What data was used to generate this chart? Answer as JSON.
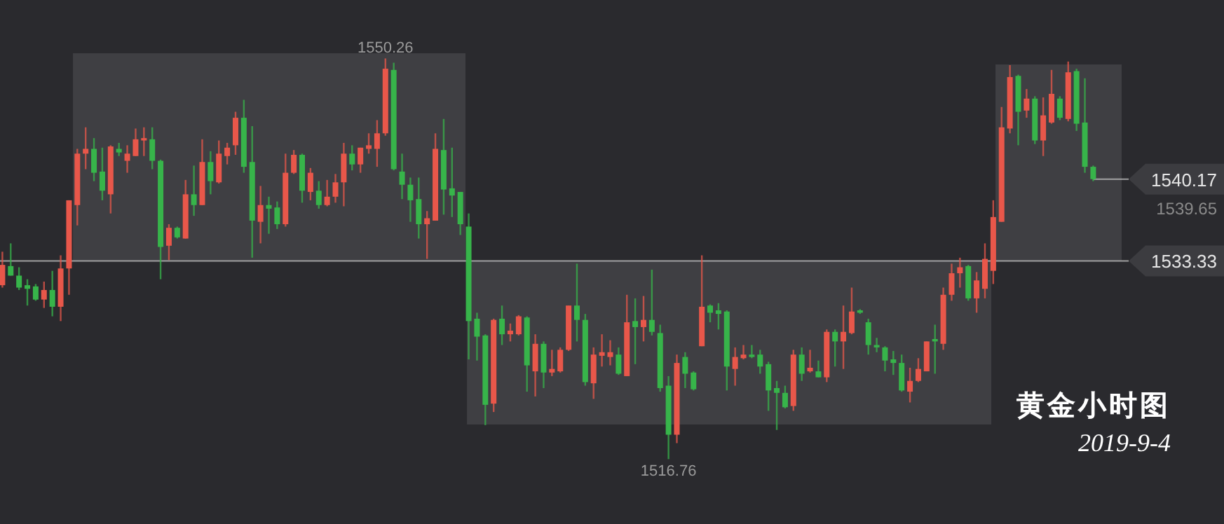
{
  "chart_data": {
    "type": "candlestick",
    "title": "黄金小时图",
    "subtitle": "2019-9-4",
    "categories": [
      null,
      null,
      null,
      null,
      null,
      null,
      null,
      null,
      null,
      null,
      null,
      null,
      null,
      null,
      null,
      null,
      null,
      null,
      null,
      null,
      null,
      null,
      null,
      null,
      null,
      null,
      null,
      null,
      null,
      null,
      null,
      null,
      null,
      null,
      null,
      null,
      null,
      null,
      null,
      null,
      null,
      null,
      null,
      null,
      null,
      null,
      null,
      null,
      null,
      null,
      null,
      null,
      null,
      null,
      null,
      null,
      null,
      null,
      null,
      null,
      null,
      null,
      null,
      null,
      null,
      null,
      null,
      null,
      null,
      null,
      null,
      null,
      null,
      null,
      null,
      null,
      null,
      null,
      null,
      null,
      null,
      null,
      null,
      null,
      null,
      null,
      null,
      null,
      null,
      null,
      null,
      null,
      null,
      null,
      null,
      null,
      null,
      null,
      null,
      null,
      null,
      null,
      null,
      null,
      null,
      null,
      null,
      null,
      null,
      null,
      null,
      null,
      null,
      null,
      null,
      null,
      null,
      null,
      null,
      null,
      null,
      null,
      null,
      null,
      null,
      null,
      null,
      null,
      null,
      null,
      null,
      null
    ],
    "ohlc": [
      [
        1531.3,
        1534.1,
        1531.1,
        1533.0
      ],
      [
        1532.9,
        1534.8,
        1532.1,
        1532.1
      ],
      [
        1532.1,
        1532.8,
        1530.9,
        1531.1
      ],
      [
        1531.3,
        1531.8,
        1529.6,
        1531.0
      ],
      [
        1531.2,
        1531.4,
        1530.0,
        1530.1
      ],
      [
        1530.1,
        1531.6,
        1529.4,
        1530.9
      ],
      [
        1530.9,
        1532.5,
        1528.7,
        1529.5
      ],
      [
        1529.5,
        1533.8,
        1528.3,
        1532.7
      ],
      [
        1532.7,
        1538.4,
        1530.5,
        1538.4
      ],
      [
        1538.0,
        1542.7,
        1536.3,
        1542.3
      ],
      [
        1542.3,
        1544.5,
        1541.0,
        1542.7
      ],
      [
        1542.7,
        1543.6,
        1540.0,
        1540.7
      ],
      [
        1540.8,
        1542.8,
        1538.4,
        1539.2
      ],
      [
        1538.9,
        1543.0,
        1537.3,
        1542.9
      ],
      [
        1542.7,
        1543.2,
        1542.1,
        1542.4
      ],
      [
        1541.7,
        1543.0,
        1540.7,
        1542.3
      ],
      [
        1542.1,
        1544.4,
        1542.1,
        1543.5
      ],
      [
        1543.4,
        1544.5,
        1542.1,
        1543.6
      ],
      [
        1543.5,
        1544.5,
        1541.0,
        1541.7
      ],
      [
        1541.7,
        1541.8,
        1531.8,
        1534.5
      ],
      [
        1534.6,
        1536.4,
        1533.4,
        1536.1
      ],
      [
        1536.1,
        1536.2,
        1535.2,
        1535.3
      ],
      [
        1535.2,
        1540.1,
        1535.2,
        1538.9
      ],
      [
        1538.9,
        1541.3,
        1537.1,
        1538.0
      ],
      [
        1538.0,
        1543.5,
        1538.0,
        1541.6
      ],
      [
        1541.6,
        1542.5,
        1538.9,
        1540.0
      ],
      [
        1539.9,
        1543.4,
        1539.8,
        1542.3
      ],
      [
        1542.1,
        1543.2,
        1541.4,
        1542.8
      ],
      [
        1543.0,
        1545.8,
        1542.2,
        1545.3
      ],
      [
        1545.3,
        1546.8,
        1540.7,
        1541.2
      ],
      [
        1541.6,
        1544.6,
        1533.6,
        1536.7
      ],
      [
        1536.6,
        1539.6,
        1534.8,
        1538.0
      ],
      [
        1538.0,
        1538.7,
        1535.6,
        1537.7
      ],
      [
        1537.8,
        1538.3,
        1536.0,
        1536.4
      ],
      [
        1536.4,
        1542.3,
        1536.2,
        1540.7
      ],
      [
        1540.7,
        1542.6,
        1540.6,
        1542.2
      ],
      [
        1542.2,
        1542.3,
        1538.2,
        1539.2
      ],
      [
        1539.1,
        1541.1,
        1538.4,
        1540.7
      ],
      [
        1539.2,
        1540.0,
        1537.7,
        1538.0
      ],
      [
        1538.0,
        1540.1,
        1537.9,
        1538.7
      ],
      [
        1538.7,
        1540.6,
        1538.2,
        1539.9
      ],
      [
        1539.9,
        1543.2,
        1537.9,
        1542.3
      ],
      [
        1542.3,
        1543.0,
        1540.9,
        1541.4
      ],
      [
        1541.4,
        1542.8,
        1540.7,
        1542.8
      ],
      [
        1542.7,
        1544.0,
        1542.3,
        1543.0
      ],
      [
        1542.7,
        1545.1,
        1541.2,
        1544.0
      ],
      [
        1544.0,
        1550.26,
        1543.8,
        1549.4
      ],
      [
        1549.3,
        1549.9,
        1540.9,
        1541.0
      ],
      [
        1540.8,
        1542.3,
        1538.5,
        1539.7
      ],
      [
        1539.7,
        1540.3,
        1536.6,
        1538.4
      ],
      [
        1538.5,
        1540.3,
        1535.2,
        1536.4
      ],
      [
        1536.4,
        1537.5,
        1533.5,
        1536.9
      ],
      [
        1536.7,
        1544.0,
        1536.7,
        1542.7
      ],
      [
        1542.6,
        1545.2,
        1537.2,
        1539.3
      ],
      [
        1539.4,
        1542.8,
        1537.0,
        1538.8
      ],
      [
        1539.1,
        1539.1,
        1535.5,
        1536.4
      ],
      [
        1536.2,
        1537.3,
        1525.1,
        1528.3
      ],
      [
        1528.5,
        1529.0,
        1525.0,
        1527.0
      ],
      [
        1527.1,
        1527.2,
        1519.6,
        1521.3
      ],
      [
        1521.4,
        1528.5,
        1520.7,
        1528.4
      ],
      [
        1528.5,
        1529.6,
        1526.3,
        1527.2
      ],
      [
        1527.2,
        1528.1,
        1526.6,
        1527.5
      ],
      [
        1527.2,
        1528.8,
        1527.1,
        1528.7
      ],
      [
        1528.6,
        1528.7,
        1522.4,
        1524.6
      ],
      [
        1524.1,
        1527.2,
        1522.0,
        1526.4
      ],
      [
        1526.4,
        1526.6,
        1522.7,
        1524.0
      ],
      [
        1524.0,
        1525.9,
        1523.7,
        1524.3
      ],
      [
        1524.1,
        1526.1,
        1524.0,
        1525.9
      ],
      [
        1525.9,
        1529.6,
        1525.8,
        1529.6
      ],
      [
        1529.6,
        1533.1,
        1526.6,
        1528.4
      ],
      [
        1528.4,
        1528.9,
        1522.9,
        1523.2
      ],
      [
        1523.1,
        1526.1,
        1521.8,
        1525.5
      ],
      [
        1525.4,
        1527.2,
        1524.5,
        1525.7
      ],
      [
        1525.3,
        1526.7,
        1524.6,
        1525.7
      ],
      [
        1525.5,
        1526.1,
        1523.8,
        1523.9
      ],
      [
        1523.7,
        1530.5,
        1523.7,
        1528.2
      ],
      [
        1528.3,
        1530.2,
        1524.7,
        1527.8
      ],
      [
        1527.8,
        1530.4,
        1526.6,
        1528.4
      ],
      [
        1528.4,
        1532.6,
        1527.1,
        1527.4
      ],
      [
        1527.3,
        1528.0,
        1522.4,
        1522.7
      ],
      [
        1522.9,
        1523.7,
        1516.76,
        1518.8
      ],
      [
        1518.8,
        1525.5,
        1518.1,
        1524.8
      ],
      [
        1525.3,
        1525.7,
        1522.7,
        1523.9
      ],
      [
        1524.0,
        1524.1,
        1522.5,
        1522.6
      ],
      [
        1526.2,
        1533.8,
        1526.2,
        1529.5
      ],
      [
        1529.6,
        1529.7,
        1528.2,
        1529.0
      ],
      [
        1529.2,
        1529.8,
        1527.6,
        1528.9
      ],
      [
        1529.1,
        1529.2,
        1522.5,
        1524.5
      ],
      [
        1524.3,
        1526.1,
        1522.9,
        1525.3
      ],
      [
        1525.2,
        1526.3,
        1525.1,
        1525.5
      ],
      [
        1525.5,
        1526.3,
        1525.2,
        1525.3
      ],
      [
        1525.5,
        1525.9,
        1523.9,
        1524.5
      ],
      [
        1524.7,
        1524.9,
        1520.8,
        1522.5
      ],
      [
        1522.7,
        1523.3,
        1519.2,
        1522.3
      ],
      [
        1522.3,
        1522.9,
        1521.0,
        1521.1
      ],
      [
        1521.2,
        1525.9,
        1520.8,
        1525.5
      ],
      [
        1525.5,
        1526.1,
        1523.3,
        1523.9
      ],
      [
        1524.1,
        1525.9,
        1524.0,
        1524.4
      ],
      [
        1524.1,
        1525.0,
        1523.6,
        1523.6
      ],
      [
        1523.6,
        1527.6,
        1523.2,
        1527.4
      ],
      [
        1527.4,
        1527.6,
        1524.5,
        1526.6
      ],
      [
        1526.6,
        1529.6,
        1524.3,
        1527.4
      ],
      [
        1527.3,
        1531.1,
        1527.2,
        1529.1
      ],
      [
        1529.2,
        1529.3,
        1528.9,
        1529.0
      ],
      [
        1528.2,
        1528.5,
        1525.5,
        1526.3
      ],
      [
        1526.3,
        1526.9,
        1525.7,
        1526.1
      ],
      [
        1526.1,
        1526.2,
        1524.1,
        1525.0
      ],
      [
        1525.1,
        1525.8,
        1523.8,
        1524.8
      ],
      [
        1524.8,
        1525.5,
        1522.4,
        1522.5
      ],
      [
        1522.4,
        1524.4,
        1521.5,
        1523.3
      ],
      [
        1523.3,
        1525.2,
        1523.2,
        1524.3
      ],
      [
        1524.1,
        1526.6,
        1524.1,
        1526.6
      ],
      [
        1526.8,
        1528.0,
        1523.9,
        1526.6
      ],
      [
        1526.4,
        1531.1,
        1525.9,
        1530.5
      ],
      [
        1530.5,
        1533.1,
        1530.0,
        1532.3
      ],
      [
        1532.3,
        1533.6,
        1531.1,
        1532.8
      ],
      [
        1532.9,
        1533.0,
        1530.0,
        1530.2
      ],
      [
        1530.2,
        1532.4,
        1529.0,
        1531.7
      ],
      [
        1531.0,
        1534.8,
        1530.2,
        1533.5
      ],
      [
        1532.5,
        1538.4,
        1531.4,
        1537.0
      ],
      [
        1536.6,
        1546.2,
        1536.6,
        1544.5
      ],
      [
        1544.4,
        1549.7,
        1544.0,
        1548.7
      ],
      [
        1548.8,
        1548.9,
        1543.0,
        1545.8
      ],
      [
        1545.9,
        1547.7,
        1545.3,
        1546.9
      ],
      [
        1546.9,
        1547.1,
        1543.1,
        1543.4
      ],
      [
        1543.4,
        1547.0,
        1542.1,
        1545.5
      ],
      [
        1544.9,
        1549.3,
        1544.8,
        1547.3
      ],
      [
        1546.9,
        1547.1,
        1545.1,
        1545.3
      ],
      [
        1545.2,
        1550.0,
        1545.0,
        1549.1
      ],
      [
        1549.2,
        1549.4,
        1544.2,
        1544.8
      ],
      [
        1544.9,
        1548.6,
        1540.7,
        1541.2
      ],
      [
        1541.2,
        1541.3,
        1540.0,
        1540.17
      ]
    ],
    "ref_lines": [
      {
        "axis": "y",
        "value": 1533.33,
        "label": "1533.33"
      },
      {
        "axis": "y",
        "value": 1540.17,
        "label": "1540.17"
      }
    ],
    "annotations": [
      {
        "text": "1550.26",
        "y": 1550.26
      },
      {
        "text": "1516.76",
        "y": 1516.76
      },
      "1539.65"
    ]
  }
}
